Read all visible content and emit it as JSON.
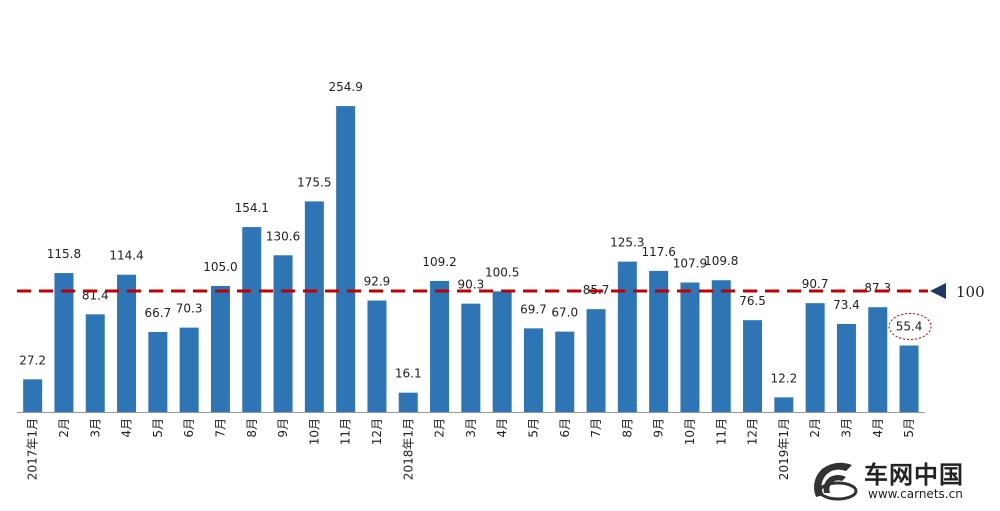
{
  "chart_data": {
    "type": "bar",
    "categories": [
      "2017年1月",
      "2月",
      "3月",
      "4月",
      "5月",
      "6月",
      "7月",
      "8月",
      "9月",
      "10月",
      "11月",
      "12月",
      "2018年1月",
      "2月",
      "3月",
      "4月",
      "5月",
      "6月",
      "7月",
      "8月",
      "9月",
      "10月",
      "11月",
      "12月",
      "2019年1月",
      "2月",
      "3月",
      "4月",
      "5月"
    ],
    "values": [
      27.2,
      115.8,
      81.4,
      114.4,
      66.7,
      70.3,
      105.0,
      154.1,
      130.6,
      175.5,
      254.9,
      92.9,
      16.1,
      109.2,
      90.3,
      100.5,
      69.7,
      67.0,
      85.7,
      125.3,
      117.6,
      107.9,
      109.8,
      76.5,
      12.2,
      90.7,
      73.4,
      87.3,
      55.4
    ],
    "value_labels": [
      "27.2",
      "115.8",
      "81.4",
      "114.4",
      "66.7",
      "70.3",
      "105.0",
      "154.1",
      "130.6",
      "175.5",
      "254.9",
      "92.9",
      "16.1",
      "109.2",
      "90.3",
      "100.5",
      "69.7",
      "67.0",
      "85.7",
      "125.3",
      "117.6",
      "107.9",
      "109.8",
      "76.5",
      "12.2",
      "90.7",
      "73.4",
      "87.3",
      "55.4"
    ],
    "title": "",
    "xlabel": "",
    "ylabel": "",
    "ylim": [
      0,
      270
    ],
    "reference_line": {
      "value": 100,
      "label": "100",
      "style": "dashed",
      "color": "#c00000"
    },
    "highlighted_category": "5月",
    "bar_color": "#2e75b6",
    "grid": false,
    "legend": "none"
  },
  "watermark": {
    "brand_cn": "车网中国",
    "url": "www.carnets.cn"
  }
}
